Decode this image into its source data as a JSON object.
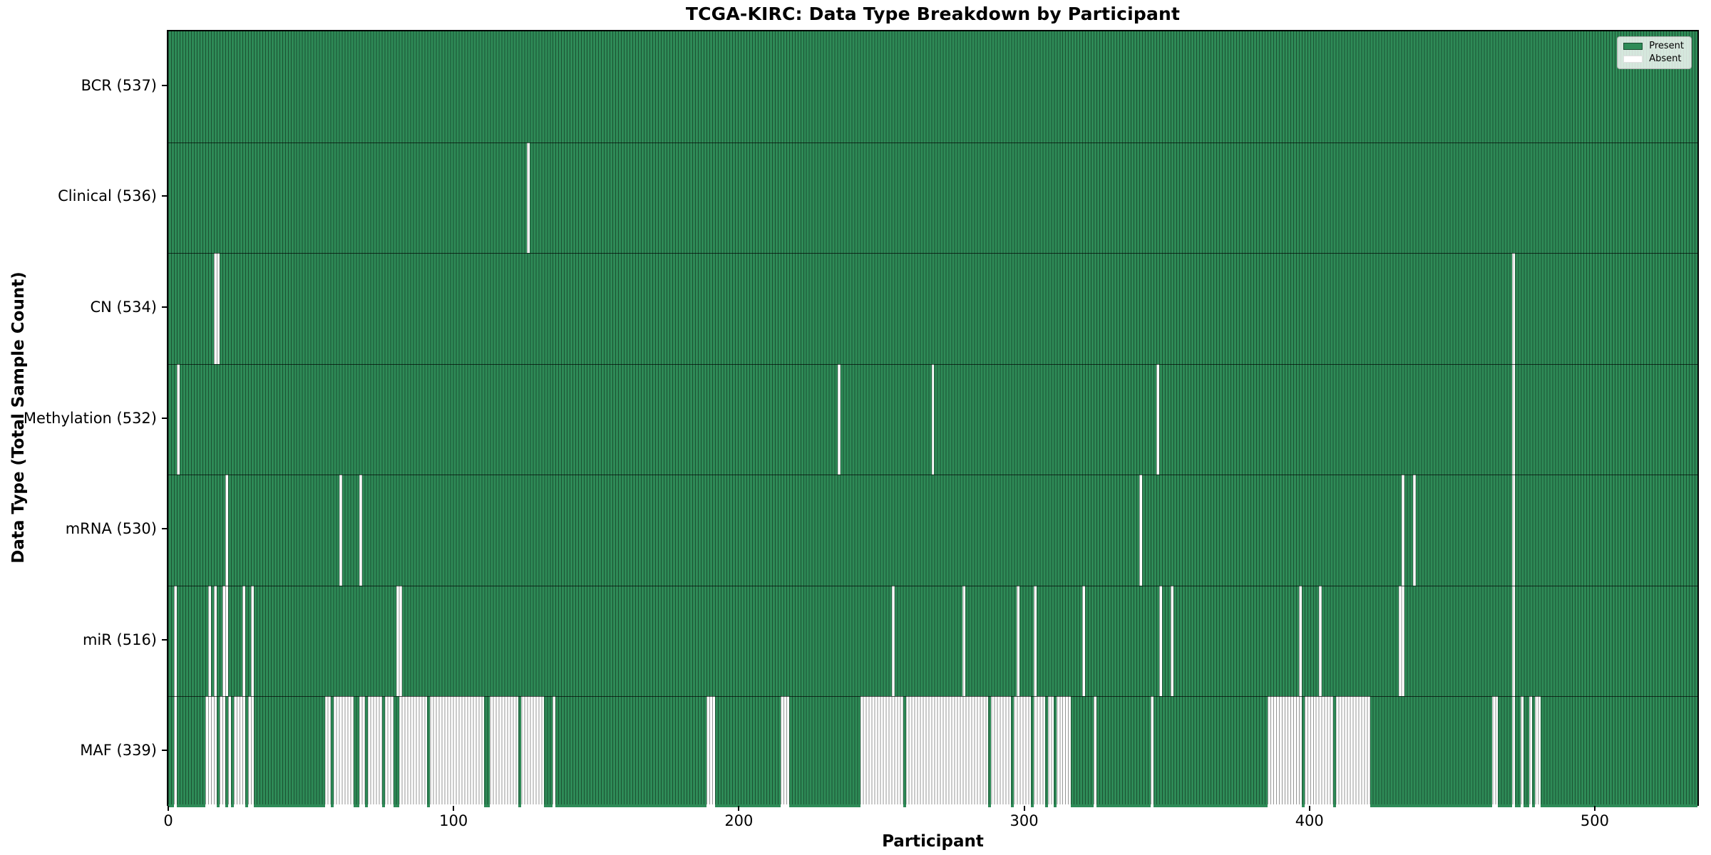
{
  "chart_data": {
    "type": "heatmap",
    "title": "TCGA-KIRC: Data Type Breakdown by Participant",
    "xlabel": "Participant",
    "ylabel": "Data Type (Total Sample Count)",
    "n_participants": 537,
    "x_ticks": [
      0,
      100,
      200,
      300,
      400,
      500
    ],
    "grid": false,
    "colors": {
      "present": "#2e8b57",
      "absent": "#ffffff",
      "bar_edge": "rgba(0,0,0,0.42)",
      "row_separator": "rgba(0,0,0,0.68)"
    },
    "legend": {
      "position": "upper-right",
      "entries": [
        {
          "label": "Present",
          "color": "#2e8b57"
        },
        {
          "label": "Absent",
          "color": "#ffffff"
        }
      ]
    },
    "rows": [
      {
        "name": "BCR",
        "label": "BCR (537)",
        "total": 537,
        "absent_ranges": []
      },
      {
        "name": "Clinical",
        "label": "Clinical (536)",
        "total": 536,
        "absent_ranges": [
          [
            126,
            126
          ]
        ]
      },
      {
        "name": "CN",
        "label": "CN (534)",
        "total": 534,
        "absent_ranges": [
          [
            16,
            17
          ],
          [
            472,
            472
          ]
        ]
      },
      {
        "name": "Methylation",
        "label": "Methylation (532)",
        "total": 532,
        "absent_ranges": [
          [
            3,
            3
          ],
          [
            235,
            235
          ],
          [
            268,
            268
          ],
          [
            347,
            347
          ],
          [
            472,
            472
          ]
        ]
      },
      {
        "name": "mRNA",
        "label": "mRNA (530)",
        "total": 530,
        "absent_ranges": [
          [
            20,
            20
          ],
          [
            60,
            60
          ],
          [
            67,
            67
          ],
          [
            341,
            341
          ],
          [
            433,
            433
          ],
          [
            437,
            437
          ],
          [
            472,
            472
          ]
        ]
      },
      {
        "name": "miR",
        "label": "miR (516)",
        "total": 516,
        "absent_ranges": [
          [
            2,
            2
          ],
          [
            14,
            14
          ],
          [
            16,
            16
          ],
          [
            19,
            20
          ],
          [
            26,
            26
          ],
          [
            29,
            29
          ],
          [
            80,
            81
          ],
          [
            254,
            254
          ],
          [
            279,
            279
          ],
          [
            298,
            298
          ],
          [
            304,
            304
          ],
          [
            321,
            321
          ],
          [
            348,
            348
          ],
          [
            352,
            352
          ],
          [
            397,
            397
          ],
          [
            404,
            404
          ],
          [
            432,
            433
          ],
          [
            472,
            472
          ]
        ]
      },
      {
        "name": "MAF",
        "label": "MAF (339)",
        "total": 339,
        "absent_ranges": [
          [
            2,
            2
          ],
          [
            13,
            16
          ],
          [
            18,
            19
          ],
          [
            21,
            21
          ],
          [
            23,
            26
          ],
          [
            28,
            29
          ],
          [
            55,
            56
          ],
          [
            58,
            64
          ],
          [
            67,
            68
          ],
          [
            70,
            72
          ],
          [
            73,
            74
          ],
          [
            76,
            78
          ],
          [
            81,
            90
          ],
          [
            92,
            110
          ],
          [
            113,
            122
          ],
          [
            124,
            131
          ],
          [
            135,
            135
          ],
          [
            189,
            191
          ],
          [
            215,
            217
          ],
          [
            243,
            257
          ],
          [
            259,
            287
          ],
          [
            289,
            295
          ],
          [
            297,
            302
          ],
          [
            304,
            307
          ],
          [
            309,
            310
          ],
          [
            312,
            316
          ],
          [
            325,
            325
          ],
          [
            345,
            345
          ],
          [
            386,
            397
          ],
          [
            399,
            408
          ],
          [
            410,
            421
          ],
          [
            465,
            466
          ],
          [
            472,
            472
          ],
          [
            475,
            475
          ],
          [
            478,
            478
          ],
          [
            480,
            481
          ]
        ]
      }
    ]
  }
}
